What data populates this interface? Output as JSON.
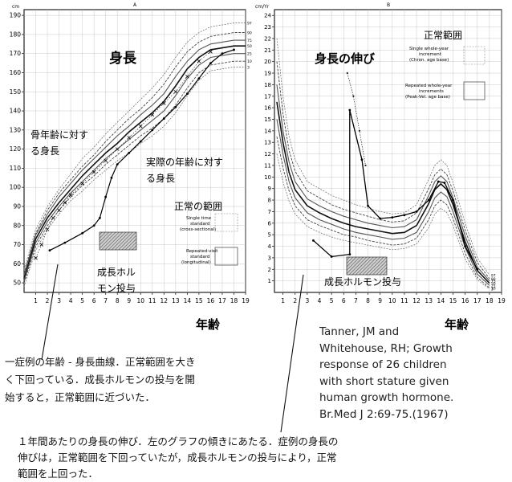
{
  "chart_data": [
    {
      "type": "line",
      "panel_label": "A",
      "title": "身長",
      "y_unit": "cm",
      "xlabel": "年齢",
      "x_ticks": [
        "1",
        "2",
        "3",
        "4",
        "5",
        "6",
        "7",
        "8",
        "9",
        "10",
        "11",
        "12",
        "13",
        "14",
        "15",
        "16",
        "17",
        "18",
        "19"
      ],
      "y_ticks": [
        "50",
        "60",
        "70",
        "80",
        "90",
        "100",
        "110",
        "120",
        "130",
        "140",
        "150",
        "160",
        "170",
        "180",
        "190"
      ],
      "xlim": [
        0,
        19
      ],
      "ylim": [
        45,
        193
      ],
      "percentile_labels": [
        "97",
        "90",
        "75",
        "50",
        "25",
        "10",
        "3"
      ],
      "annotations": {
        "bone_age": [
          "骨年齢に対す",
          "る身長"
        ],
        "actual_age": [
          "実際の年齢に対す",
          "る身長"
        ],
        "normal_range": "正常の範囲",
        "legend_cross": [
          "Single time",
          "standard",
          "(cross-sectional)"
        ],
        "legend_long": [
          "Repeated-visit",
          "standard",
          "(longitudinal)"
        ],
        "gh": [
          "成長ホル",
          "モン投与"
        ]
      },
      "series": [
        {
          "name": "97",
          "x": [
            0,
            1,
            2,
            3,
            4,
            5,
            6,
            7,
            8,
            9,
            10,
            11,
            12,
            13,
            14,
            15,
            16,
            17,
            18,
            19
          ],
          "y": [
            57,
            78,
            90,
            99,
            107,
            115,
            121,
            128,
            134,
            140,
            146,
            152,
            159,
            168,
            176,
            181,
            184,
            185,
            186,
            186
          ]
        },
        {
          "name": "90",
          "x": [
            0,
            1,
            2,
            3,
            4,
            5,
            6,
            7,
            8,
            9,
            10,
            11,
            12,
            13,
            14,
            15,
            16,
            17,
            18,
            19
          ],
          "y": [
            55,
            76,
            88,
            97,
            104,
            111,
            117,
            124,
            130,
            136,
            141,
            147,
            154,
            163,
            171,
            176,
            179,
            180,
            181,
            181
          ]
        },
        {
          "name": "75",
          "x": [
            0,
            1,
            2,
            3,
            4,
            5,
            6,
            7,
            8,
            9,
            10,
            11,
            12,
            13,
            14,
            15,
            16,
            17,
            18,
            19
          ],
          "y": [
            54,
            75,
            86,
            95,
            102,
            109,
            115,
            121,
            127,
            132,
            138,
            143,
            149,
            158,
            166,
            172,
            175,
            176,
            177,
            177
          ]
        },
        {
          "name": "50",
          "x": [
            0,
            1,
            2,
            3,
            4,
            5,
            6,
            7,
            8,
            9,
            10,
            11,
            12,
            13,
            14,
            15,
            16,
            17,
            18,
            19
          ],
          "y": [
            52,
            73,
            84,
            92,
            99,
            106,
            112,
            118,
            123,
            129,
            134,
            139,
            145,
            153,
            162,
            168,
            172,
            173,
            174,
            174
          ]
        },
        {
          "name": "25",
          "x": [
            0,
            1,
            2,
            3,
            4,
            5,
            6,
            7,
            8,
            9,
            10,
            11,
            12,
            13,
            14,
            15,
            16,
            17,
            18,
            19
          ],
          "y": [
            51,
            71,
            82,
            90,
            97,
            103,
            109,
            115,
            120,
            125,
            130,
            135,
            140,
            148,
            157,
            164,
            168,
            169,
            170,
            170
          ]
        },
        {
          "name": "10",
          "x": [
            0,
            1,
            2,
            3,
            4,
            5,
            6,
            7,
            8,
            9,
            10,
            11,
            12,
            13,
            14,
            15,
            16,
            17,
            18,
            19
          ],
          "y": [
            50,
            69,
            80,
            88,
            95,
            101,
            106,
            112,
            117,
            122,
            127,
            131,
            136,
            143,
            152,
            160,
            164,
            165,
            166,
            166
          ]
        },
        {
          "name": "3",
          "x": [
            0,
            1,
            2,
            3,
            4,
            5,
            6,
            7,
            8,
            9,
            10,
            11,
            12,
            13,
            14,
            15,
            16,
            17,
            18,
            19
          ],
          "y": [
            48,
            67,
            78,
            86,
            93,
            98,
            104,
            109,
            114,
            118,
            123,
            127,
            132,
            139,
            148,
            156,
            161,
            162,
            163,
            163
          ]
        }
      ],
      "case_actual_age": {
        "x": [
          2.2,
          3.5,
          5,
          6,
          6.5,
          7,
          7.5,
          8,
          9,
          10,
          11,
          12,
          13,
          14,
          15,
          16,
          17,
          18
        ],
        "y": [
          67,
          71,
          76,
          80,
          84,
          95,
          105,
          112,
          118,
          124,
          130,
          136,
          142,
          149,
          157,
          165,
          170,
          172
        ]
      },
      "case_bone_age": {
        "x": [
          1,
          1.5,
          2,
          2.5,
          3,
          3.5,
          4,
          5,
          6,
          7,
          8,
          9,
          10,
          11,
          12,
          13,
          14,
          15,
          16
        ],
        "y": [
          63,
          70,
          78,
          84,
          88,
          92,
          96,
          102,
          108,
          114,
          120,
          126,
          132,
          138,
          144,
          150,
          158,
          166,
          171
        ]
      }
    },
    {
      "type": "line",
      "panel_label": "B",
      "title": "身長の伸び",
      "y_unit": "cm/Yr",
      "xlabel": "年齢",
      "x_ticks": [
        "1",
        "2",
        "3",
        "4",
        "5",
        "6",
        "7",
        "8",
        "9",
        "10",
        "11",
        "12",
        "13",
        "14",
        "15",
        "16",
        "17",
        "18",
        "19"
      ],
      "y_ticks": [
        "1",
        "2",
        "3",
        "4",
        "5",
        "6",
        "7",
        "8",
        "9",
        "10",
        "11",
        "12",
        "13",
        "14",
        "15",
        "16",
        "17",
        "18",
        "19",
        "20",
        "21",
        "22",
        "23",
        "24"
      ],
      "xlim": [
        0.3,
        19
      ],
      "ylim": [
        0,
        24.5
      ],
      "annotations": {
        "normal_range": "正常範囲",
        "legend_single": [
          "Single whole-year",
          "increment",
          "(Chron. age base)"
        ],
        "legend_repeated": [
          "Repeated whole-year",
          "increments",
          "(Peak-Vel. age base)"
        ],
        "gh": "成長ホルモン投与"
      },
      "series": [
        {
          "name": "97",
          "x": [
            0.5,
            1,
            1.5,
            2,
            3,
            4,
            5,
            6,
            7,
            8,
            9,
            10,
            11,
            12,
            13,
            13.5,
            14,
            14.5,
            15,
            16,
            17,
            18
          ],
          "y": [
            22,
            17,
            13.5,
            11.5,
            9.6,
            9,
            8.4,
            8,
            7.6,
            7.3,
            7,
            6.8,
            6.9,
            7.6,
            9.8,
            11,
            11.5,
            11,
            9.5,
            6,
            3,
            1.5
          ]
        },
        {
          "name": "90",
          "x": [
            0.5,
            1,
            1.5,
            2,
            3,
            4,
            5,
            6,
            7,
            8,
            9,
            10,
            11,
            12,
            13,
            13.5,
            14,
            14.5,
            15,
            16,
            17,
            18
          ],
          "y": [
            20,
            15.5,
            12.3,
            10.5,
            8.8,
            8.2,
            7.6,
            7.2,
            6.9,
            6.6,
            6.3,
            6.1,
            6.2,
            6.9,
            9,
            10.2,
            10.7,
            10.2,
            8.8,
            5.4,
            2.6,
            1.2
          ]
        },
        {
          "name": "75",
          "x": [
            0.5,
            1,
            1.5,
            2,
            3,
            4,
            5,
            6,
            7,
            8,
            9,
            10,
            11,
            12,
            13,
            13.5,
            14,
            14.5,
            15,
            16,
            17,
            18
          ],
          "y": [
            18,
            14,
            11.3,
            9.6,
            8.1,
            7.5,
            7,
            6.6,
            6.3,
            6,
            5.8,
            5.6,
            5.7,
            6.3,
            8.4,
            9.6,
            10.1,
            9.6,
            8.2,
            4.9,
            2.2,
            1
          ]
        },
        {
          "name": "50",
          "x": [
            0.5,
            1,
            1.5,
            2,
            3,
            4,
            5,
            6,
            7,
            8,
            9,
            10,
            11,
            12,
            13,
            13.5,
            14,
            14.5,
            15,
            16,
            17,
            18
          ],
          "y": [
            16.5,
            13,
            10.4,
            8.9,
            7.5,
            6.9,
            6.4,
            6,
            5.7,
            5.5,
            5.3,
            5.1,
            5.2,
            5.8,
            7.7,
            8.9,
            9.4,
            8.9,
            7.6,
            4.4,
            1.9,
            0.8
          ]
        },
        {
          "name": "25",
          "x": [
            0.5,
            1,
            1.5,
            2,
            3,
            4,
            5,
            6,
            7,
            8,
            9,
            10,
            11,
            12,
            13,
            13.5,
            14,
            14.5,
            15,
            16,
            17,
            18
          ],
          "y": [
            15,
            12,
            9.6,
            8.2,
            6.9,
            6.3,
            5.9,
            5.5,
            5.2,
            5,
            4.8,
            4.6,
            4.7,
            5.2,
            7,
            8.2,
            8.7,
            8.3,
            7,
            3.9,
            1.6,
            0.6
          ]
        },
        {
          "name": "10",
          "x": [
            0.5,
            1,
            1.5,
            2,
            3,
            4,
            5,
            6,
            7,
            8,
            9,
            10,
            11,
            12,
            13,
            13.5,
            14,
            14.5,
            15,
            16,
            17,
            18
          ],
          "y": [
            13.5,
            10.8,
            8.8,
            7.5,
            6.3,
            5.8,
            5.4,
            5,
            4.8,
            4.5,
            4.3,
            4.1,
            4.2,
            4.7,
            6.3,
            7.5,
            8,
            7.6,
            6.4,
            3.4,
            1.3,
            0.4
          ]
        },
        {
          "name": "3",
          "x": [
            0.5,
            1,
            1.5,
            2,
            3,
            4,
            5,
            6,
            7,
            8,
            9,
            10,
            11,
            12,
            13,
            13.5,
            14,
            14.5,
            15,
            16,
            17,
            18
          ],
          "y": [
            12,
            9.6,
            7.9,
            6.8,
            5.7,
            5.2,
            4.8,
            4.5,
            4.3,
            4.1,
            3.9,
            3.7,
            3.8,
            4.2,
            5.6,
            6.8,
            7.3,
            6.9,
            5.8,
            2.9,
            1.1,
            0.3
          ]
        }
      ],
      "case": {
        "x": [
          3.5,
          5,
          6.5,
          6.5,
          7.5,
          8,
          9,
          10,
          11,
          12,
          13,
          13.8,
          14.3,
          15,
          16,
          17
        ],
        "y": [
          4.5,
          3.1,
          3.3,
          15.8,
          11.5,
          7.5,
          6.4,
          6.5,
          6.7,
          7,
          8,
          9.6,
          9.5,
          8,
          4,
          2
        ]
      },
      "case_peak": {
        "x": [
          6.3,
          6.8,
          7.3,
          7.8
        ],
        "y": [
          19,
          17,
          14,
          11
        ]
      }
    }
  ],
  "captions": {
    "left": [
      "一症例の年齢 - 身長曲線．正常範囲を大き",
      "く下回っている．成長ホルモンの投与を開",
      "始すると，正常範囲に近づいた．"
    ],
    "bottom": [
      "１年間あたりの身長の伸び．左のグラフの傾きにあたる．症例の身長の",
      "伸びは，正常範囲を下回っていたが，成長ホルモンの投与により，正常",
      "範囲を上回った．"
    ],
    "citation": [
      "Tanner, JM and",
      "Whitehouse, RH; Growth",
      "response of 26 children",
      "with short stature given",
      "human growth hormone.",
      "Br.Med J 2:69-75.(1967)"
    ]
  }
}
